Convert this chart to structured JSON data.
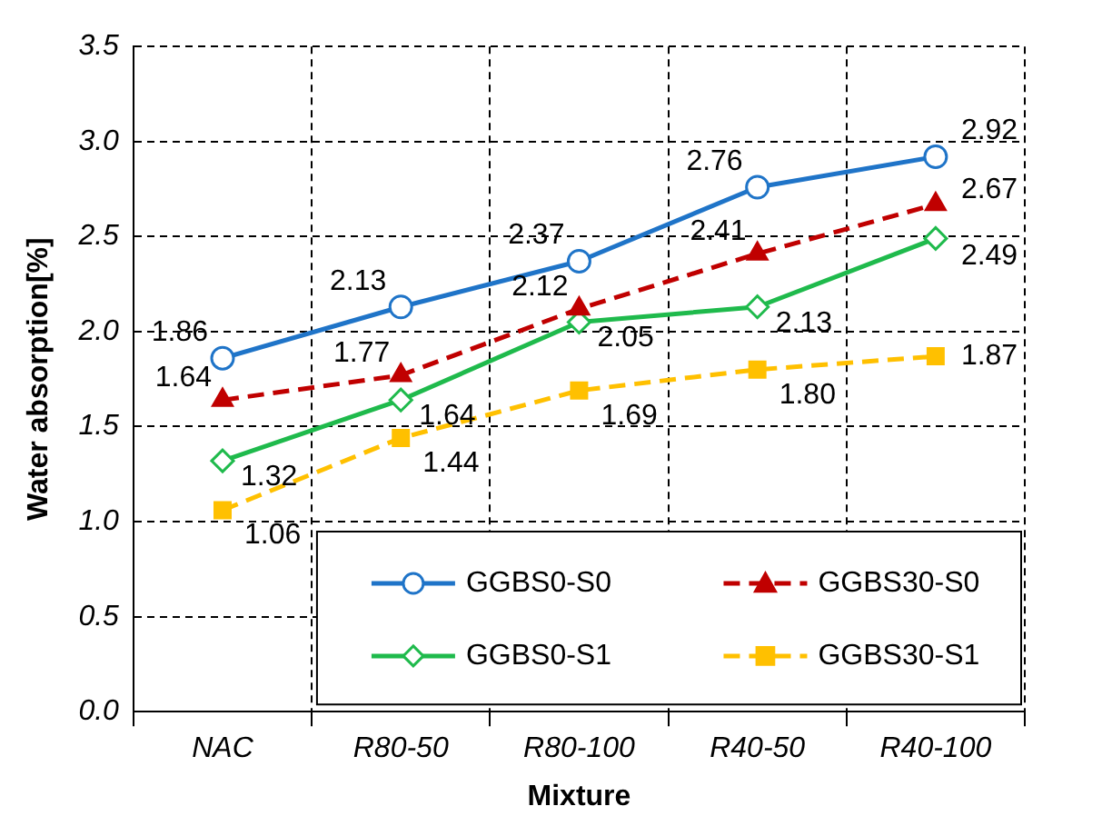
{
  "chart_data": {
    "type": "line",
    "xlabel": "Mixture",
    "ylabel": "Water absorption[%]",
    "categories": [
      "NAC",
      "R80-50",
      "R80-100",
      "R40-50",
      "R40-100"
    ],
    "series": [
      {
        "name": "GGBS0-S0",
        "color": "#1f74c8",
        "values": [
          1.86,
          2.13,
          2.37,
          2.76,
          2.92
        ],
        "value_labels": [
          "1.86",
          "2.13",
          "2.37",
          "2.76",
          "2.92"
        ],
        "marker": "circle",
        "line_style": "solid"
      },
      {
        "name": "GGBS30-S0",
        "color": "#c00000",
        "values": [
          1.64,
          1.77,
          2.12,
          2.41,
          2.67
        ],
        "value_labels": [
          "1.64",
          "1.77",
          "2.12",
          "2.41",
          "2.67"
        ],
        "marker": "triangle",
        "line_style": "dashed"
      },
      {
        "name": "GGBS0-S1",
        "color": "#1fba4c",
        "values": [
          1.32,
          1.64,
          2.05,
          2.13,
          2.49
        ],
        "value_labels": [
          "1.32",
          "1.64",
          "2.05",
          "2.13",
          "2.49"
        ],
        "marker": "diamond",
        "line_style": "solid"
      },
      {
        "name": "GGBS30-S1",
        "color": "#ffc000",
        "values": [
          1.06,
          1.44,
          1.69,
          1.8,
          1.87
        ],
        "value_labels": [
          "1.06",
          "1.44",
          "1.69",
          "1.80",
          "1.87"
        ],
        "marker": "square",
        "line_style": "dashed"
      }
    ],
    "ylim": [
      0,
      3.5
    ],
    "yticks": [
      {
        "value": 0,
        "label": "0.0"
      },
      0.5,
      {
        "value": 1,
        "label": "1.0"
      },
      1.5,
      {
        "value": 2,
        "label": "2.0"
      },
      2.5,
      {
        "value": 3,
        "label": "3.0"
      },
      3.5
    ],
    "grid": true,
    "legend": "bottom right"
  }
}
